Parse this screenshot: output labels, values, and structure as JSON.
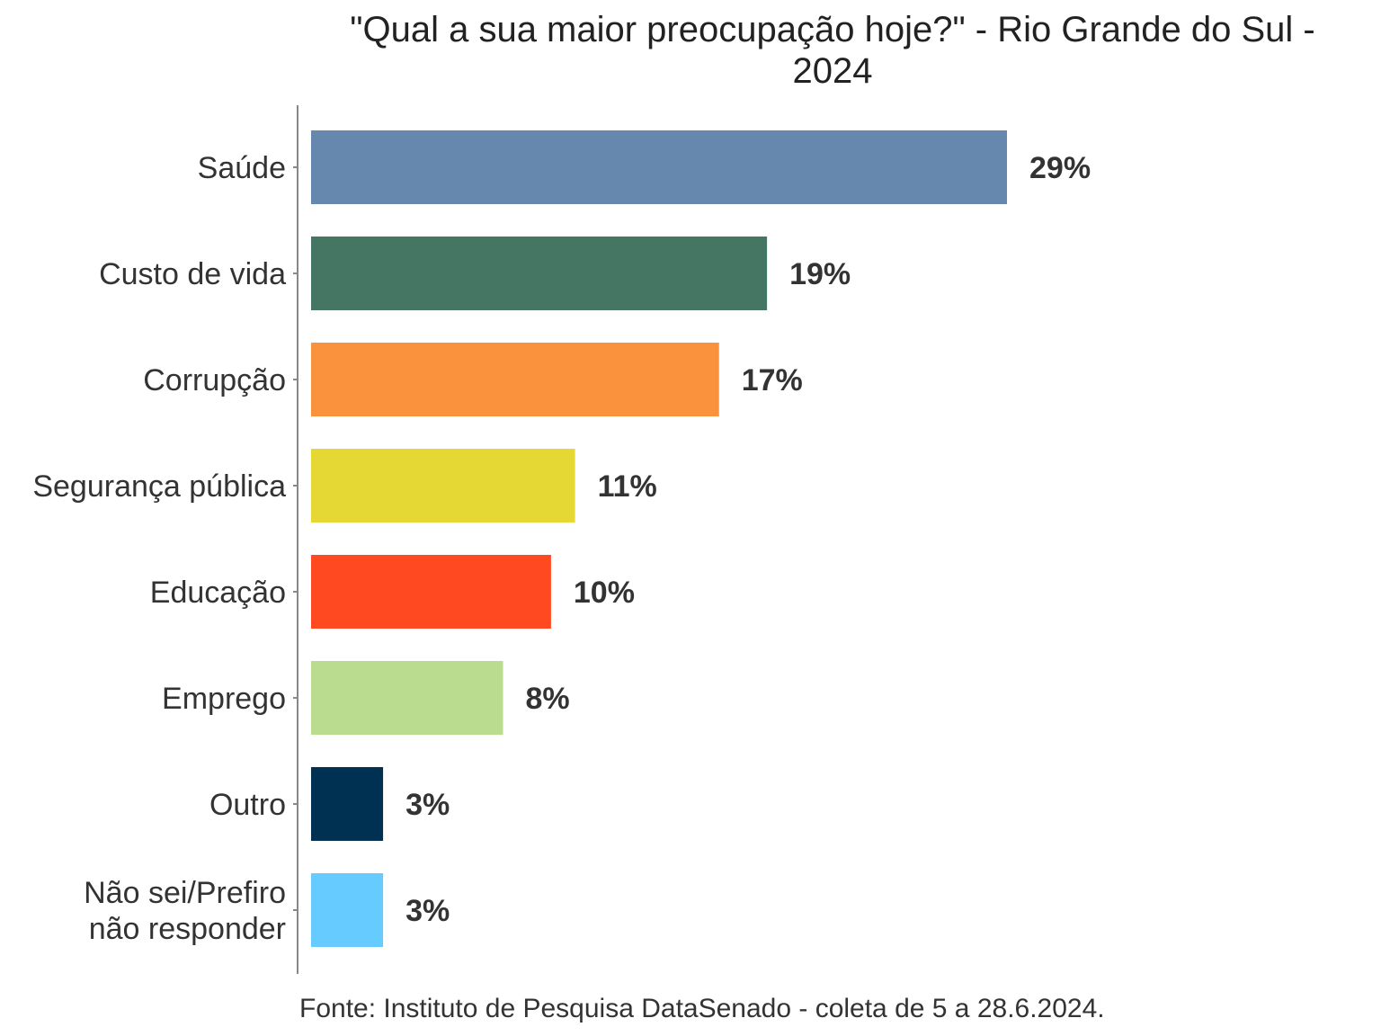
{
  "chart_data": {
    "type": "bar",
    "orientation": "horizontal",
    "title_line1": "\"Qual a sua maior preocupação hoje?\" - Rio Grande do Sul -",
    "title_line2": "2024",
    "caption": "Fonte: Instituto de Pesquisa DataSenado - coleta de 5 a 28.6.2024.",
    "categories": [
      "Saúde",
      "Custo de vida",
      "Corrupção",
      "Segurança pública",
      "Educação",
      "Emprego",
      "Outro",
      "Não sei/Prefiro\nnão responder"
    ],
    "values": [
      29,
      19,
      17,
      11,
      10,
      8,
      3,
      3
    ],
    "labels": [
      "29%",
      "19%",
      "17%",
      "11%",
      "10%",
      "8%",
      "3%",
      "3%"
    ],
    "colors": [
      "#6688AE",
      "#457563",
      "#F9913D",
      "#E5D835",
      "#FF4A21",
      "#BADC8F",
      "#003153",
      "#66CBFF"
    ],
    "xlim": [
      0,
      55
    ],
    "grid": false,
    "legend": "none"
  }
}
